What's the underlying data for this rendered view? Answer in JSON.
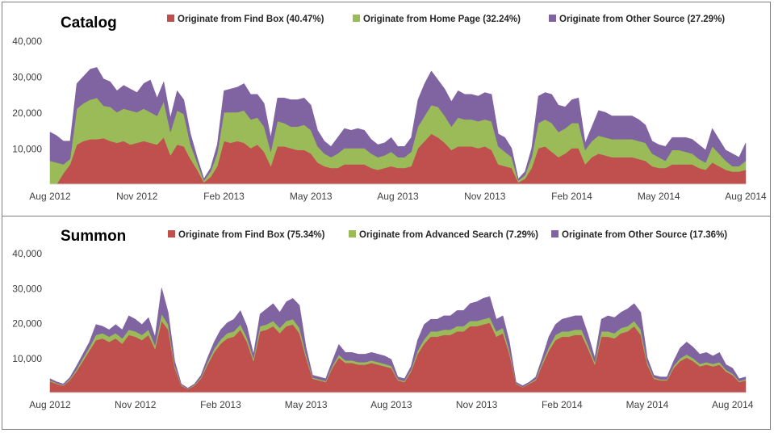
{
  "chart_data": [
    {
      "type": "area",
      "stacked": true,
      "title": "Catalog",
      "xlabel": "",
      "ylabel": "",
      "ylim": [
        0,
        40000
      ],
      "yticks": [
        10000,
        20000,
        30000,
        40000
      ],
      "ytick_labels": [
        "10,000",
        "20,000",
        "30,000",
        "40,000"
      ],
      "xtick_labels": [
        "Aug 2012",
        "Nov 2012",
        "Feb 2013",
        "May 2013",
        "Aug 2013",
        "Nov 2013",
        "Feb 2014",
        "May 2014",
        "Aug 2014"
      ],
      "xtick_positions": [
        0,
        13,
        26,
        39,
        52,
        65,
        78,
        91,
        104
      ],
      "legend_position": "top",
      "series": [
        {
          "name": "Originate from Find Box (40.47%)",
          "color": "#c0504d",
          "values": [
            0,
            0,
            3000,
            5500,
            11000,
            12000,
            12500,
            12500,
            12800,
            12000,
            11500,
            12000,
            11000,
            11500,
            12000,
            11500,
            11000,
            13000,
            8000,
            11000,
            10500,
            7000,
            4000,
            500,
            2000,
            5000,
            12000,
            11500,
            12000,
            11500,
            10000,
            11000,
            9000,
            5000,
            10500,
            10500,
            10000,
            9500,
            9500,
            8500,
            6000,
            5000,
            4500,
            4500,
            5500,
            5500,
            5500,
            5500,
            4500,
            4000,
            4500,
            5000,
            4500,
            4500,
            5000,
            10000,
            12000,
            14000,
            13000,
            11500,
            9500,
            10500,
            10500,
            10500,
            10000,
            10500,
            9500,
            5500,
            5000,
            4500,
            500,
            1500,
            4500,
            10000,
            10500,
            9000,
            7500,
            8500,
            10000,
            10000,
            5500,
            7500,
            8500,
            8000,
            7500,
            7500,
            7500,
            7500,
            7000,
            6500,
            5000,
            4500,
            4500,
            5500,
            5500,
            5500,
            5500,
            4500,
            4000,
            6000,
            5000,
            4000,
            3500,
            3500,
            4000
          ]
        },
        {
          "name": "Originate from Home Page (32.24%)",
          "color": "#9bbb59",
          "values": [
            6500,
            6000,
            2500,
            1500,
            10000,
            10500,
            11000,
            11500,
            9000,
            9500,
            8500,
            9000,
            9500,
            8500,
            9000,
            8500,
            8000,
            10000,
            6500,
            9500,
            9000,
            4000,
            2000,
            500,
            1500,
            3500,
            8000,
            8500,
            8000,
            9000,
            8000,
            7500,
            7000,
            4000,
            7000,
            6500,
            6000,
            6500,
            7000,
            6500,
            4500,
            3500,
            3000,
            4000,
            4500,
            4500,
            4500,
            4500,
            4000,
            3500,
            3500,
            4000,
            3000,
            3000,
            4000,
            6000,
            7000,
            8000,
            8500,
            7500,
            6500,
            8000,
            7500,
            7500,
            7500,
            7500,
            8000,
            5000,
            4000,
            3000,
            500,
            1000,
            3000,
            7000,
            7500,
            8000,
            7000,
            7000,
            7000,
            7000,
            4000,
            4500,
            5000,
            5000,
            5000,
            5000,
            5000,
            5000,
            5000,
            5000,
            3500,
            3000,
            2000,
            4000,
            4000,
            3500,
            3000,
            2500,
            2000,
            4500,
            3500,
            2500,
            1500,
            1500,
            2500
          ]
        },
        {
          "name": "Originate from Other Source (27.29%)",
          "color": "#8064a2",
          "values": [
            8000,
            7500,
            6500,
            5000,
            7000,
            7500,
            8500,
            8500,
            7500,
            7000,
            6000,
            6500,
            6000,
            5500,
            7000,
            9000,
            5000,
            5500,
            4000,
            5500,
            4000,
            3000,
            1500,
            500,
            1000,
            2500,
            6000,
            6500,
            7000,
            7500,
            7000,
            6500,
            6500,
            4000,
            6500,
            7000,
            7500,
            7500,
            7500,
            7000,
            4500,
            3500,
            3000,
            4500,
            5500,
            5000,
            5500,
            5000,
            4000,
            3500,
            3500,
            4000,
            3000,
            3000,
            4000,
            7500,
            9000,
            9500,
            7500,
            7500,
            7000,
            7500,
            7000,
            7000,
            7000,
            7500,
            7500,
            3500,
            4000,
            2500,
            500,
            1000,
            2500,
            7500,
            7500,
            8000,
            7500,
            6000,
            6500,
            7000,
            2000,
            4000,
            7000,
            7000,
            6500,
            6500,
            6500,
            6500,
            6000,
            5000,
            3500,
            3500,
            4000,
            3500,
            3500,
            4000,
            4000,
            4000,
            3500,
            5000,
            4000,
            3000,
            3500,
            2500,
            5000
          ]
        }
      ]
    },
    {
      "type": "area",
      "stacked": true,
      "title": "Summon",
      "xlabel": "",
      "ylabel": "",
      "ylim": [
        0,
        40000
      ],
      "yticks": [
        10000,
        20000,
        30000,
        40000
      ],
      "ytick_labels": [
        "10,000",
        "20,000",
        "30,000",
        "40,000"
      ],
      "xtick_labels": [
        "Aug 2012",
        "Nov 2012",
        "Feb 2013",
        "May 2013",
        "Aug 2013",
        "Nov 2013",
        "Feb 2014",
        "May 2014",
        "Aug 2014"
      ],
      "xtick_positions": [
        0,
        13,
        26,
        39,
        52,
        65,
        78,
        91,
        104
      ],
      "legend_position": "top",
      "series": [
        {
          "name": "Originate from Find Box (75.34%)",
          "color": "#c0504d",
          "values": [
            3200,
            2500,
            2000,
            3500,
            6000,
            9000,
            12000,
            15000,
            15500,
            14500,
            15500,
            14000,
            16500,
            16000,
            15000,
            16500,
            12500,
            20500,
            18000,
            7000,
            2000,
            1000,
            2000,
            4000,
            8000,
            11500,
            14000,
            15500,
            16000,
            18000,
            14500,
            9000,
            17500,
            18000,
            19000,
            17000,
            19000,
            19500,
            17000,
            10000,
            4000,
            3500,
            3000,
            7000,
            10000,
            8500,
            8500,
            8000,
            8000,
            8500,
            8000,
            7500,
            7000,
            3500,
            3000,
            6000,
            11000,
            14000,
            16000,
            16000,
            16500,
            16500,
            17500,
            17500,
            19000,
            19000,
            19500,
            20000,
            16000,
            17000,
            11000,
            2500,
            1500,
            2500,
            3500,
            8000,
            12000,
            15000,
            16000,
            16000,
            16500,
            16500,
            12500,
            8000,
            16000,
            16000,
            15500,
            17000,
            17500,
            19000,
            16500,
            8000,
            4000,
            3500,
            3500,
            7000,
            9000,
            10000,
            9000,
            7500,
            8000,
            7500,
            8000,
            6000,
            5000,
            3000,
            3500
          ]
        },
        {
          "name": "Originate from Advanced Search (7.29%)",
          "color": "#9bbb59",
          "values": [
            300,
            200,
            200,
            300,
            500,
            800,
            1000,
            1500,
            1500,
            1500,
            1500,
            1500,
            1500,
            1500,
            1500,
            1500,
            1000,
            2000,
            1500,
            600,
            200,
            100,
            200,
            300,
            700,
            1000,
            1200,
            1500,
            1500,
            1500,
            1200,
            800,
            1500,
            1500,
            1500,
            1500,
            1500,
            1500,
            1500,
            900,
            300,
            300,
            300,
            600,
            800,
            700,
            700,
            700,
            700,
            700,
            700,
            700,
            600,
            300,
            300,
            500,
            1000,
            1200,
            1500,
            1500,
            1500,
            1500,
            1500,
            1500,
            1500,
            1500,
            1500,
            1500,
            1500,
            1500,
            900,
            200,
            100,
            200,
            300,
            700,
            1000,
            1500,
            1500,
            1500,
            1500,
            1500,
            1000,
            700,
            1500,
            1500,
            1500,
            1500,
            1500,
            1500,
            1500,
            700,
            300,
            300,
            300,
            600,
            800,
            900,
            800,
            700,
            700,
            700,
            700,
            500,
            400,
            300,
            300
          ]
        },
        {
          "name": "Originate from Other Source (17.36%)",
          "color": "#8064a2",
          "values": [
            500,
            400,
            300,
            500,
            1000,
            1200,
            1500,
            3000,
            2000,
            2000,
            2500,
            2500,
            4000,
            3500,
            3000,
            3500,
            2500,
            7500,
            3500,
            1400,
            300,
            200,
            300,
            700,
            1300,
            2000,
            2800,
            3000,
            3500,
            4000,
            3300,
            1200,
            3500,
            4500,
            5000,
            4500,
            5500,
            6000,
            6500,
            2100,
            700,
            700,
            700,
            1400,
            3000,
            2300,
            2300,
            2300,
            2300,
            2300,
            2300,
            2300,
            1900,
            700,
            700,
            1000,
            3000,
            4300,
            3500,
            3500,
            4000,
            4000,
            4500,
            4500,
            5000,
            5500,
            6000,
            6000,
            3500,
            3500,
            2600,
            300,
            400,
            300,
            700,
            1300,
            3000,
            3000,
            3500,
            4000,
            4000,
            4000,
            3000,
            1300,
            3500,
            4500,
            4500,
            4500,
            5000,
            5000,
            5000,
            1300,
            700,
            700,
            700,
            1400,
            3000,
            3600,
            3200,
            2800,
            2800,
            2300,
            2800,
            1500,
            1600,
            700,
            700
          ]
        }
      ]
    }
  ]
}
